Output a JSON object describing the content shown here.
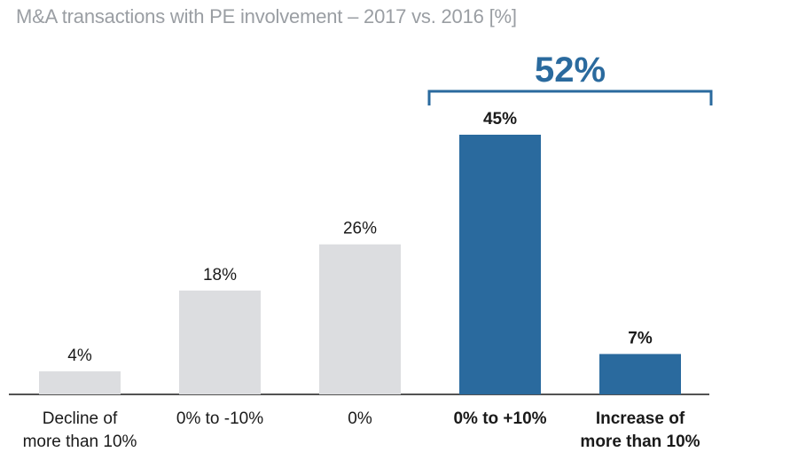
{
  "chart_data": {
    "type": "bar",
    "title": "M&A transactions with PE involvement – 2017 vs. 2016 [%]",
    "categories": [
      [
        "Decline of",
        "more than 10%"
      ],
      [
        "0% to -10%"
      ],
      [
        "0%"
      ],
      [
        "0% to +10%"
      ],
      [
        "Increase of",
        "more than 10%"
      ]
    ],
    "values": [
      4,
      18,
      26,
      45,
      7
    ],
    "value_labels": [
      "4%",
      "18%",
      "26%",
      "45%",
      "7%"
    ],
    "highlighted": [
      false,
      false,
      false,
      true,
      true
    ],
    "annotation": {
      "label": "52%",
      "spans_categories": [
        3,
        4
      ]
    },
    "colors": {
      "base": "#dcdde0",
      "highlight": "#2a6a9e",
      "annotation": "#2a6a9e"
    },
    "ylim": [
      0,
      45
    ],
    "grid": false,
    "legend": "none"
  }
}
